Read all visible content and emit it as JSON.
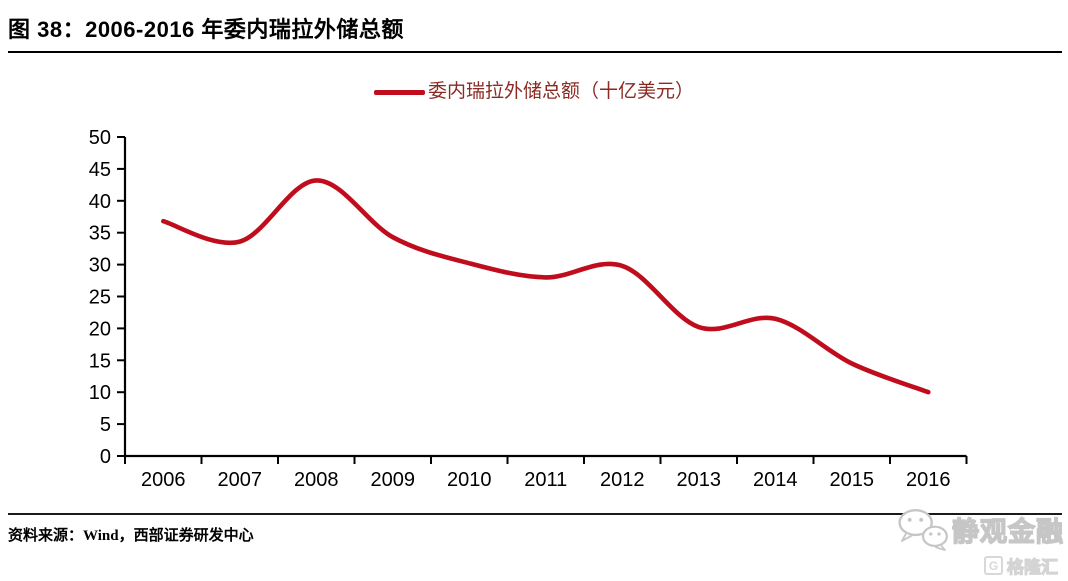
{
  "figure": {
    "title": "图 38：2006-2016 年委内瑞拉外储总额",
    "source": "资料来源：Wind，西部证券研发中心"
  },
  "legend": {
    "label": "委内瑞拉外储总额（十亿美元）"
  },
  "watermark": {
    "wechat_name": "静观金融",
    "platform_name": "格隆汇",
    "platform_icon_letter": "G"
  },
  "colors": {
    "line": "#C00D1E",
    "legend_text": "#8B2A23",
    "axis": "#000000",
    "watermark_gray": "#C6C6C6"
  },
  "chart_data": {
    "type": "line",
    "title": "委内瑞拉外储总额（十亿美元）",
    "categories": [
      "2006",
      "2007",
      "2008",
      "2009",
      "2010",
      "2011",
      "2012",
      "2013",
      "2014",
      "2015",
      "2016"
    ],
    "series": [
      {
        "name": "委内瑞拉外储总额（十亿美元）",
        "values": [
          36.8,
          33.6,
          43.2,
          34.3,
          30.2,
          28.0,
          29.8,
          20.2,
          21.5,
          14.5,
          10.0
        ]
      }
    ],
    "xlabel": "",
    "ylabel": "",
    "ylim": [
      0,
      50
    ],
    "yticks": [
      0,
      5,
      10,
      15,
      20,
      25,
      30,
      35,
      40,
      45,
      50
    ],
    "grid": false,
    "legend_position": "top-center",
    "line_smooth": true
  }
}
